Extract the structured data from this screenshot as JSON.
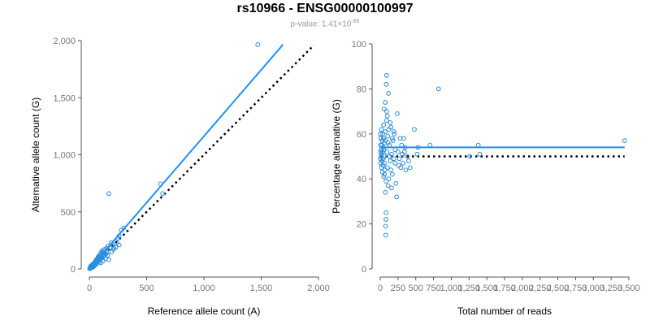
{
  "header": {
    "title": "rs10966 - ENSG00000100997",
    "pvalue_prefix": "p-value: 1.41×10",
    "pvalue_exp": "-66"
  },
  "colors": {
    "points": "#2a8bd6",
    "fit": "#1e90ff",
    "reference": "#000000",
    "axis": "#555555"
  },
  "chart_data": [
    {
      "type": "scatter",
      "xlabel": "Reference allele count (A)",
      "ylabel": "Alternative allele count (G)",
      "xlim": [
        0,
        2000
      ],
      "ylim": [
        0,
        2000
      ],
      "xticks": [
        0,
        500,
        1000,
        1500,
        2000
      ],
      "xtick_labels": [
        "0",
        "500",
        "1,000",
        "1,500",
        "2,000"
      ],
      "yticks": [
        0,
        500,
        1000,
        1500,
        2000
      ],
      "ytick_labels": [
        "0",
        "500",
        "1,000",
        "1,500",
        "2,000"
      ],
      "fit_line": {
        "x": [
          0,
          1690
        ],
        "y": [
          0,
          1965
        ]
      },
      "reference_line": {
        "x": [
          0,
          1960
        ],
        "y": [
          0,
          1960
        ]
      },
      "points": [
        [
          1470,
          1965
        ],
        [
          620,
          745
        ],
        [
          640,
          660
        ],
        [
          170,
          660
        ],
        [
          300,
          360
        ],
        [
          280,
          340
        ],
        [
          260,
          290
        ],
        [
          240,
          230
        ],
        [
          250,
          270
        ],
        [
          200,
          210
        ],
        [
          190,
          230
        ],
        [
          180,
          190
        ],
        [
          160,
          200
        ],
        [
          150,
          180
        ],
        [
          130,
          170
        ],
        [
          120,
          150
        ],
        [
          110,
          160
        ],
        [
          100,
          140
        ],
        [
          90,
          120
        ],
        [
          80,
          110
        ],
        [
          75,
          100
        ],
        [
          70,
          90
        ],
        [
          60,
          80
        ],
        [
          55,
          70
        ],
        [
          50,
          60
        ],
        [
          45,
          55
        ],
        [
          40,
          50
        ],
        [
          35,
          45
        ],
        [
          30,
          40
        ],
        [
          25,
          35
        ],
        [
          20,
          30
        ],
        [
          15,
          20
        ],
        [
          10,
          15
        ],
        [
          5,
          8
        ],
        [
          12,
          25
        ],
        [
          22,
          18
        ],
        [
          32,
          28
        ],
        [
          42,
          38
        ],
        [
          52,
          48
        ],
        [
          62,
          55
        ],
        [
          72,
          65
        ],
        [
          82,
          75
        ],
        [
          92,
          85
        ],
        [
          102,
          95
        ],
        [
          112,
          100
        ],
        [
          122,
          110
        ],
        [
          132,
          120
        ],
        [
          142,
          130
        ],
        [
          152,
          140
        ],
        [
          85,
          60
        ],
        [
          65,
          45
        ],
        [
          48,
          30
        ],
        [
          38,
          22
        ],
        [
          28,
          15
        ],
        [
          18,
          10
        ],
        [
          8,
          4
        ],
        [
          3,
          2
        ],
        [
          58,
          65
        ],
        [
          68,
          80
        ],
        [
          78,
          95
        ],
        [
          88,
          105
        ],
        [
          98,
          118
        ],
        [
          108,
          130
        ],
        [
          118,
          140
        ],
        [
          210,
          170
        ],
        [
          230,
          190
        ],
        [
          260,
          210
        ],
        [
          170,
          80
        ],
        [
          140,
          90
        ],
        [
          120,
          70
        ],
        [
          100,
          55
        ],
        [
          160,
          120
        ],
        [
          195,
          150
        ],
        [
          215,
          185
        ]
      ]
    },
    {
      "type": "scatter",
      "xlabel": "Total number of reads",
      "ylabel": "Percentage alternative (G)",
      "xlim": [
        0,
        3500
      ],
      "ylim": [
        0,
        100
      ],
      "xticks": [
        0,
        250,
        500,
        750,
        1000,
        1250,
        1500,
        1750,
        2000,
        2250,
        2500,
        2750,
        3000,
        3250,
        3500
      ],
      "xtick_labels": [
        "0",
        "250",
        "500",
        "750",
        "1,000",
        "1,250",
        "1,500",
        "1,750",
        "2,000",
        "2,250",
        "2,500",
        "2,750",
        "3,000",
        "3,250",
        "3,500"
      ],
      "yticks": [
        0,
        20,
        40,
        60,
        80,
        100
      ],
      "ytick_labels": [
        "0",
        "20",
        "40",
        "60",
        "80",
        "100"
      ],
      "fit_line": {
        "x": [
          0,
          3440
        ],
        "y": [
          54,
          54
        ]
      },
      "reference_line": {
        "x": [
          0,
          3440
        ],
        "y": [
          50,
          50
        ]
      },
      "points": [
        [
          3440,
          57
        ],
        [
          1380,
          55
        ],
        [
          1400,
          51
        ],
        [
          1260,
          50
        ],
        [
          820,
          80
        ],
        [
          700,
          55
        ],
        [
          530,
          54
        ],
        [
          520,
          51
        ],
        [
          480,
          62
        ],
        [
          420,
          45
        ],
        [
          400,
          48
        ],
        [
          380,
          50
        ],
        [
          360,
          44
        ],
        [
          340,
          52
        ],
        [
          320,
          47
        ],
        [
          300,
          55
        ],
        [
          280,
          58
        ],
        [
          260,
          46
        ],
        [
          240,
          69
        ],
        [
          230,
          32
        ],
        [
          220,
          38
        ],
        [
          210,
          53
        ],
        [
          200,
          60
        ],
        [
          190,
          49
        ],
        [
          180,
          57
        ],
        [
          170,
          42
        ],
        [
          160,
          51
        ],
        [
          150,
          63
        ],
        [
          140,
          48
        ],
        [
          130,
          55
        ],
        [
          120,
          40
        ],
        [
          115,
          78
        ],
        [
          110,
          37
        ],
        [
          105,
          59
        ],
        [
          100,
          45
        ],
        [
          95,
          52
        ],
        [
          90,
          86
        ],
        [
          88,
          66
        ],
        [
          85,
          82
        ],
        [
          82,
          25
        ],
        [
          80,
          22
        ],
        [
          78,
          15
        ],
        [
          75,
          19
        ],
        [
          72,
          34
        ],
        [
          70,
          74
        ],
        [
          68,
          61
        ],
        [
          65,
          44
        ],
        [
          62,
          56
        ],
        [
          60,
          50
        ],
        [
          58,
          47
        ],
        [
          55,
          71
        ],
        [
          52,
          53
        ],
        [
          50,
          41
        ],
        [
          48,
          64
        ],
        [
          45,
          58
        ],
        [
          42,
          49
        ],
        [
          40,
          54
        ],
        [
          38,
          46
        ],
        [
          35,
          60
        ],
        [
          32,
          52
        ],
        [
          30,
          43
        ],
        [
          28,
          57
        ],
        [
          25,
          48
        ],
        [
          22,
          55
        ],
        [
          20,
          51
        ],
        [
          18,
          62
        ],
        [
          15,
          45
        ],
        [
          12,
          53
        ],
        [
          10,
          50
        ],
        [
          8,
          58
        ],
        [
          6,
          47
        ],
        [
          5,
          55
        ],
        [
          4,
          52
        ],
        [
          3,
          49
        ],
        [
          2,
          60
        ],
        [
          110,
          56
        ],
        [
          130,
          50
        ],
        [
          150,
          44
        ],
        [
          170,
          58
        ],
        [
          190,
          61
        ],
        [
          210,
          47
        ],
        [
          250,
          52
        ],
        [
          270,
          49
        ],
        [
          290,
          45
        ],
        [
          310,
          51
        ],
        [
          330,
          58
        ],
        [
          350,
          54
        ],
        [
          140,
          65
        ],
        [
          160,
          36
        ],
        [
          100,
          68
        ],
        [
          90,
          70
        ],
        [
          80,
          39
        ],
        [
          120,
          62
        ],
        [
          70,
          57
        ],
        [
          60,
          42
        ]
      ]
    }
  ]
}
